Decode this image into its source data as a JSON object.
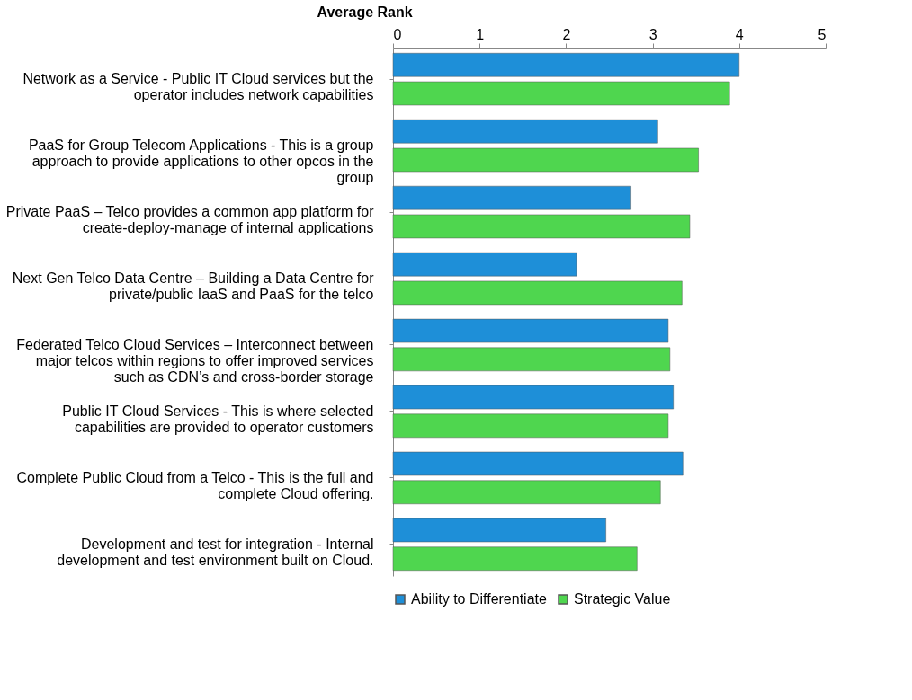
{
  "chart_data": {
    "type": "bar",
    "orientation": "horizontal",
    "xlabel": "Average Rank",
    "categories": [
      "Network as a Service - Public IT Cloud services but the operator includes network capabilities",
      "PaaS for Group Telecom Applications - This is a group approach to provide applications to other opcos in the group",
      "Private PaaS – Telco provides a common app platform for create-deploy-manage of internal applications",
      "Next Gen Telco Data Centre – Building a Data Centre for private/public IaaS and PaaS for the telco",
      "Federated Telco Cloud Services – Interconnect between major telcos within regions to offer improved services such as CDN’s and cross-border storage",
      "Public IT Cloud Services - This is where selected capabilities are provided to operator customers",
      "Complete Public Cloud from a Telco - This is the full and complete Cloud offering.",
      "Development and test for integration - Internal development and test environment built on Cloud."
    ],
    "series": [
      {
        "name": "Ability to Differentiate",
        "color": "#1e8fd8",
        "values": [
          4.0,
          3.06,
          2.75,
          2.12,
          3.18,
          3.24,
          3.35,
          2.46
        ]
      },
      {
        "name": "Strategic Value",
        "color": "#4fd64f",
        "values": [
          3.89,
          3.53,
          3.43,
          3.34,
          3.2,
          3.18,
          3.09,
          2.82
        ]
      }
    ],
    "xlim": [
      0,
      5
    ],
    "xticks": [
      0,
      1,
      2,
      3,
      4,
      5
    ],
    "grid": false,
    "legend": "bottom"
  }
}
